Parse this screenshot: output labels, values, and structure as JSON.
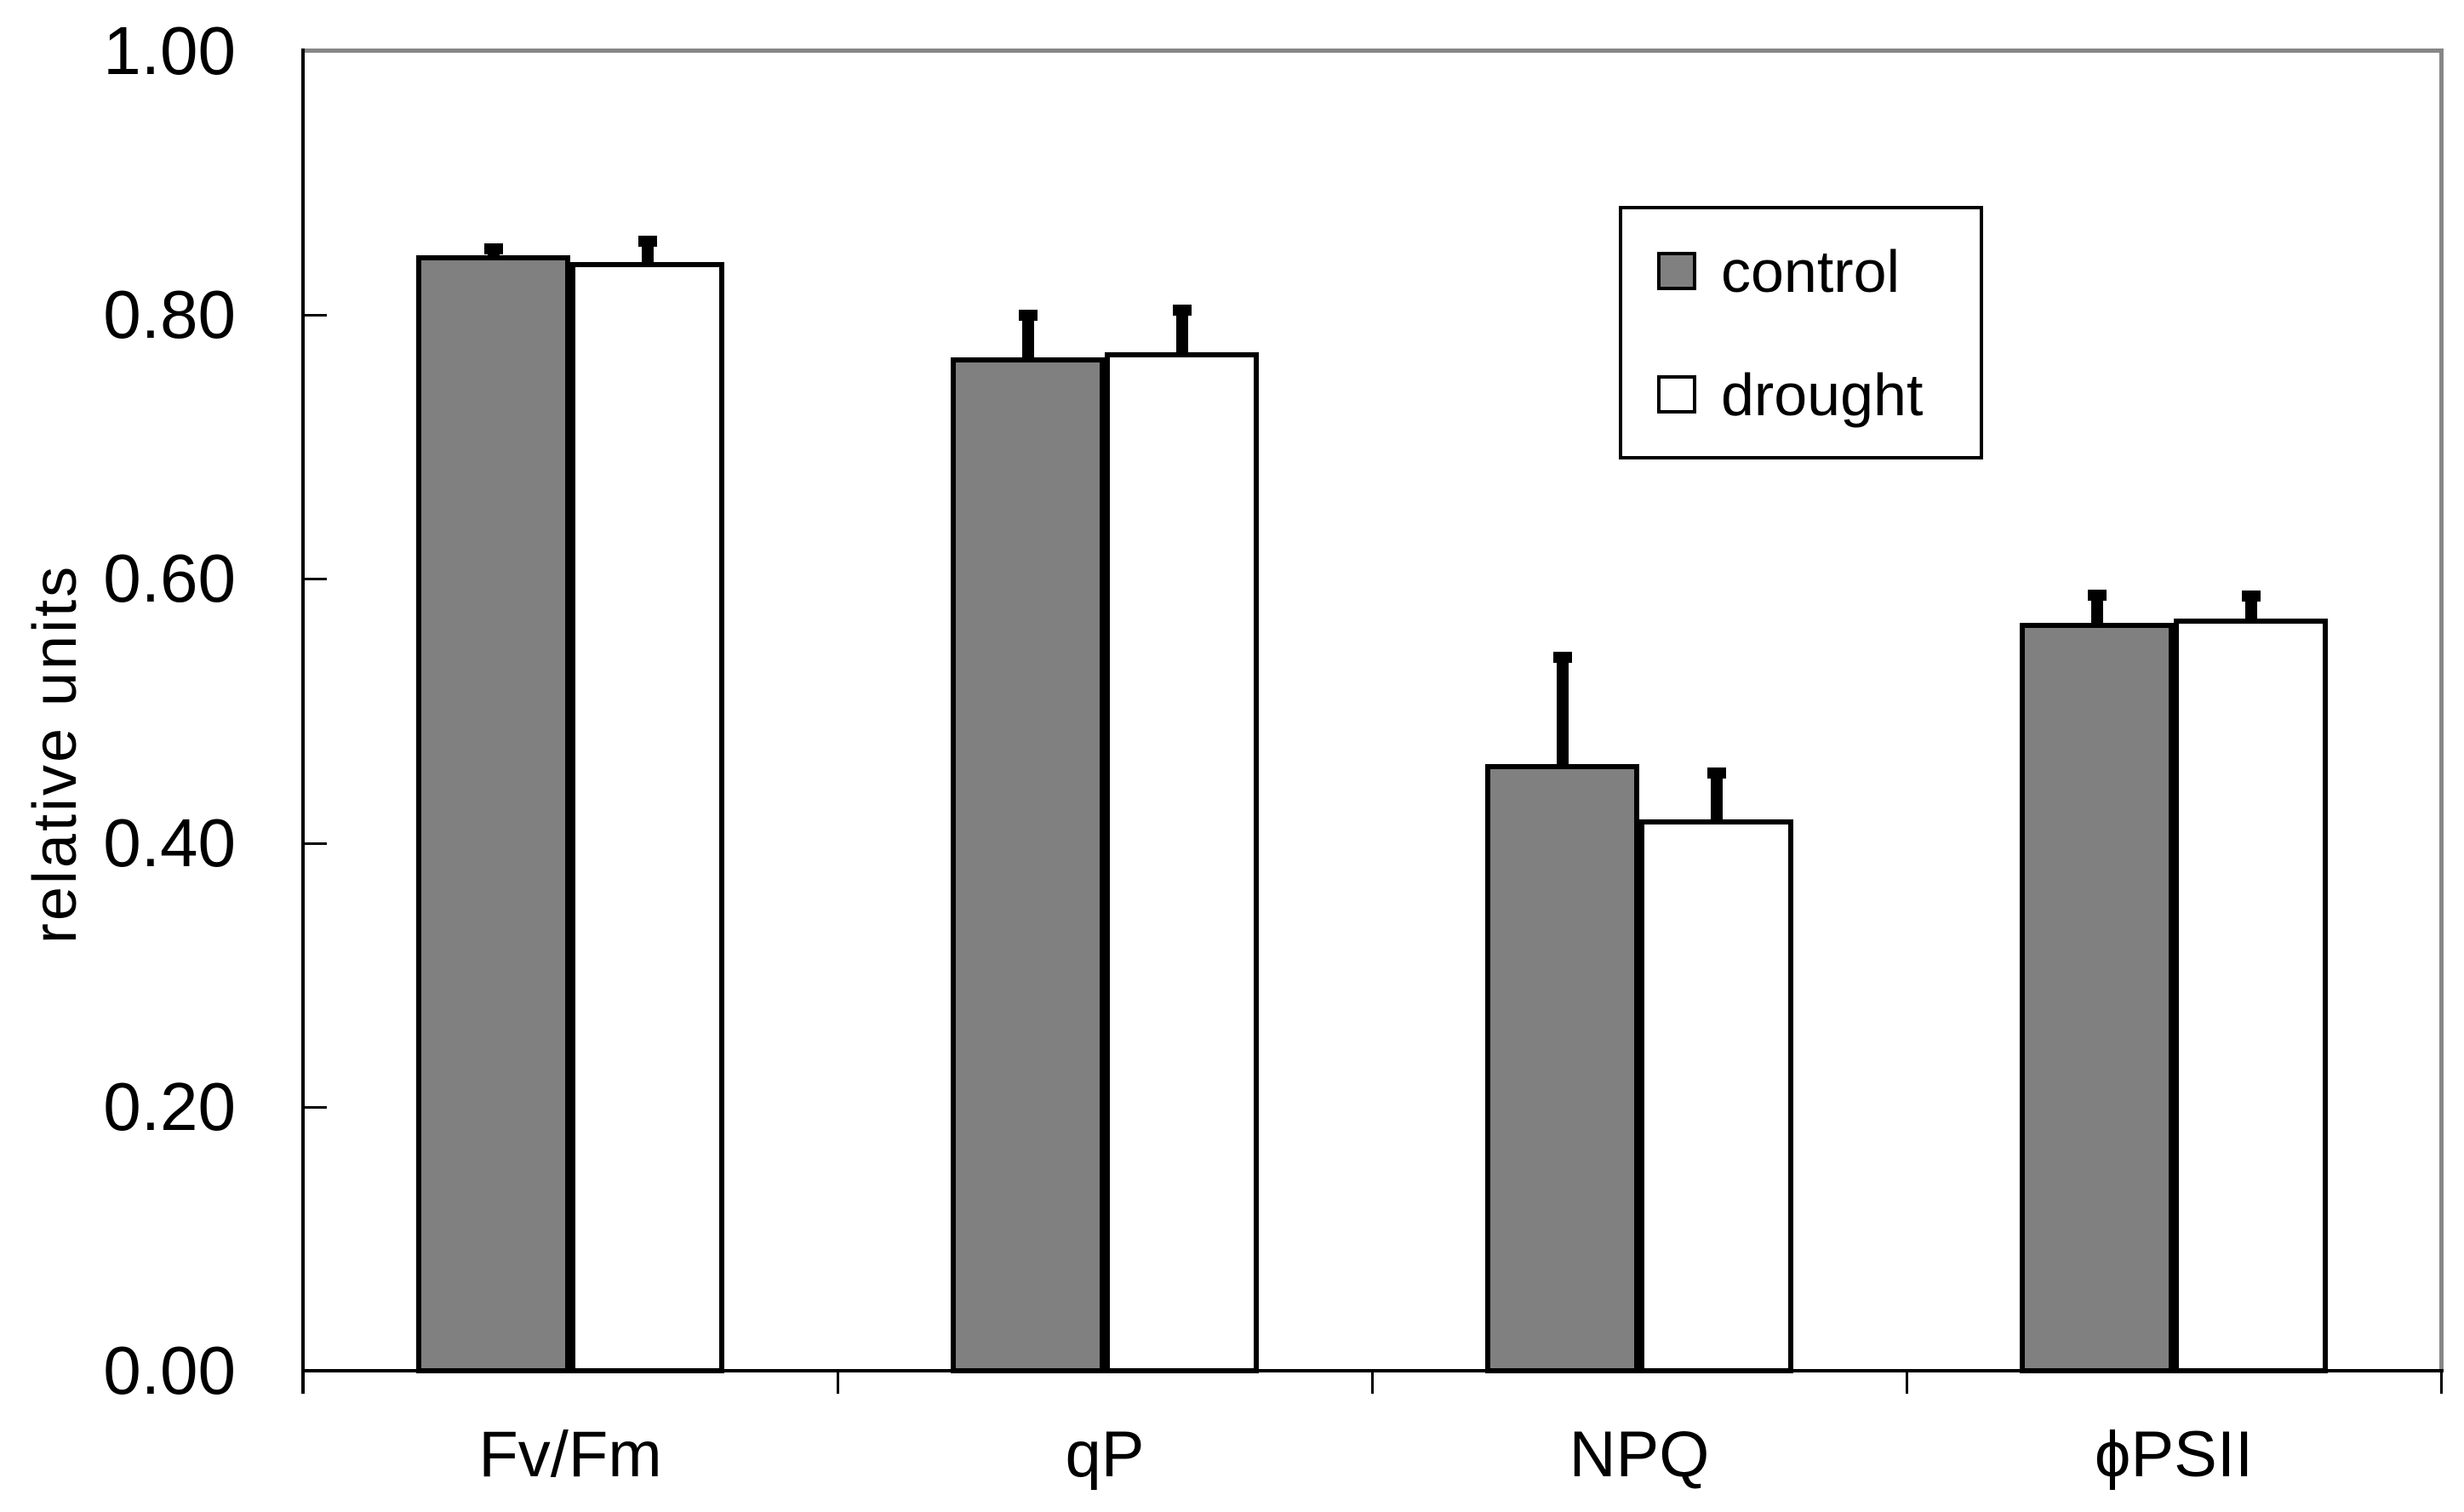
{
  "chart_data": {
    "type": "bar",
    "title": "",
    "ylabel": "relative units",
    "xlabel": "",
    "ylim": [
      0,
      1.0
    ],
    "yticks": [
      {
        "value": 0.0,
        "label": "0.00"
      },
      {
        "value": 0.2,
        "label": "0.20"
      },
      {
        "value": 0.4,
        "label": "0.40"
      },
      {
        "value": 0.6,
        "label": "0.60"
      },
      {
        "value": 0.8,
        "label": "0.80"
      },
      {
        "value": 1.0,
        "label": "1.00"
      }
    ],
    "categories": [
      "Fv/Fm",
      "qP",
      "NPQ",
      "ϕPSII"
    ],
    "series": [
      {
        "name": "control",
        "fill": "#808080",
        "outline": "#000000",
        "values": [
          0.845,
          0.768,
          0.46,
          0.567
        ],
        "errors_plus": [
          0.009,
          0.036,
          0.085,
          0.025
        ]
      },
      {
        "name": "drought",
        "fill": "#ffffff",
        "outline": "#000000",
        "values": [
          0.84,
          0.772,
          0.418,
          0.57
        ],
        "errors_plus": [
          0.02,
          0.036,
          0.039,
          0.021
        ]
      }
    ],
    "legend": {
      "position": "top-right"
    },
    "grid": false,
    "background": "#ffffff",
    "axis_color": "#000000",
    "plot_border_color": "#878787",
    "error_bar_color": "#000000"
  }
}
